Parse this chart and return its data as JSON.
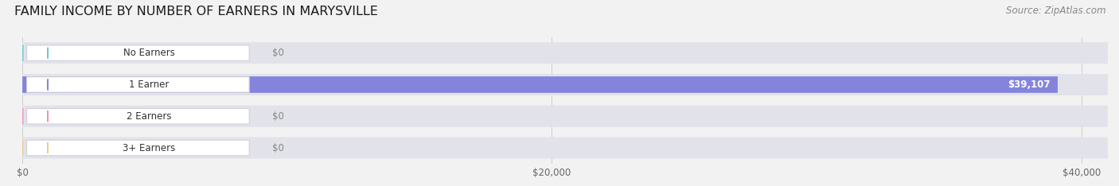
{
  "title": "FAMILY INCOME BY NUMBER OF EARNERS IN MARYSVILLE",
  "source": "Source: ZipAtlas.com",
  "categories": [
    "No Earners",
    "1 Earner",
    "2 Earners",
    "3+ Earners"
  ],
  "values": [
    0,
    39107,
    0,
    0
  ],
  "bar_colors": [
    "#63cec8",
    "#8484dd",
    "#f092b0",
    "#f6c98a"
  ],
  "background_color": "#f2f2f2",
  "bar_bg_color": "#e2e2ea",
  "xlim_max": 41000,
  "xticks": [
    0,
    20000,
    40000
  ],
  "xtick_labels": [
    "$0",
    "$20,000",
    "$40,000"
  ],
  "title_fontsize": 11.5,
  "source_fontsize": 8.5
}
